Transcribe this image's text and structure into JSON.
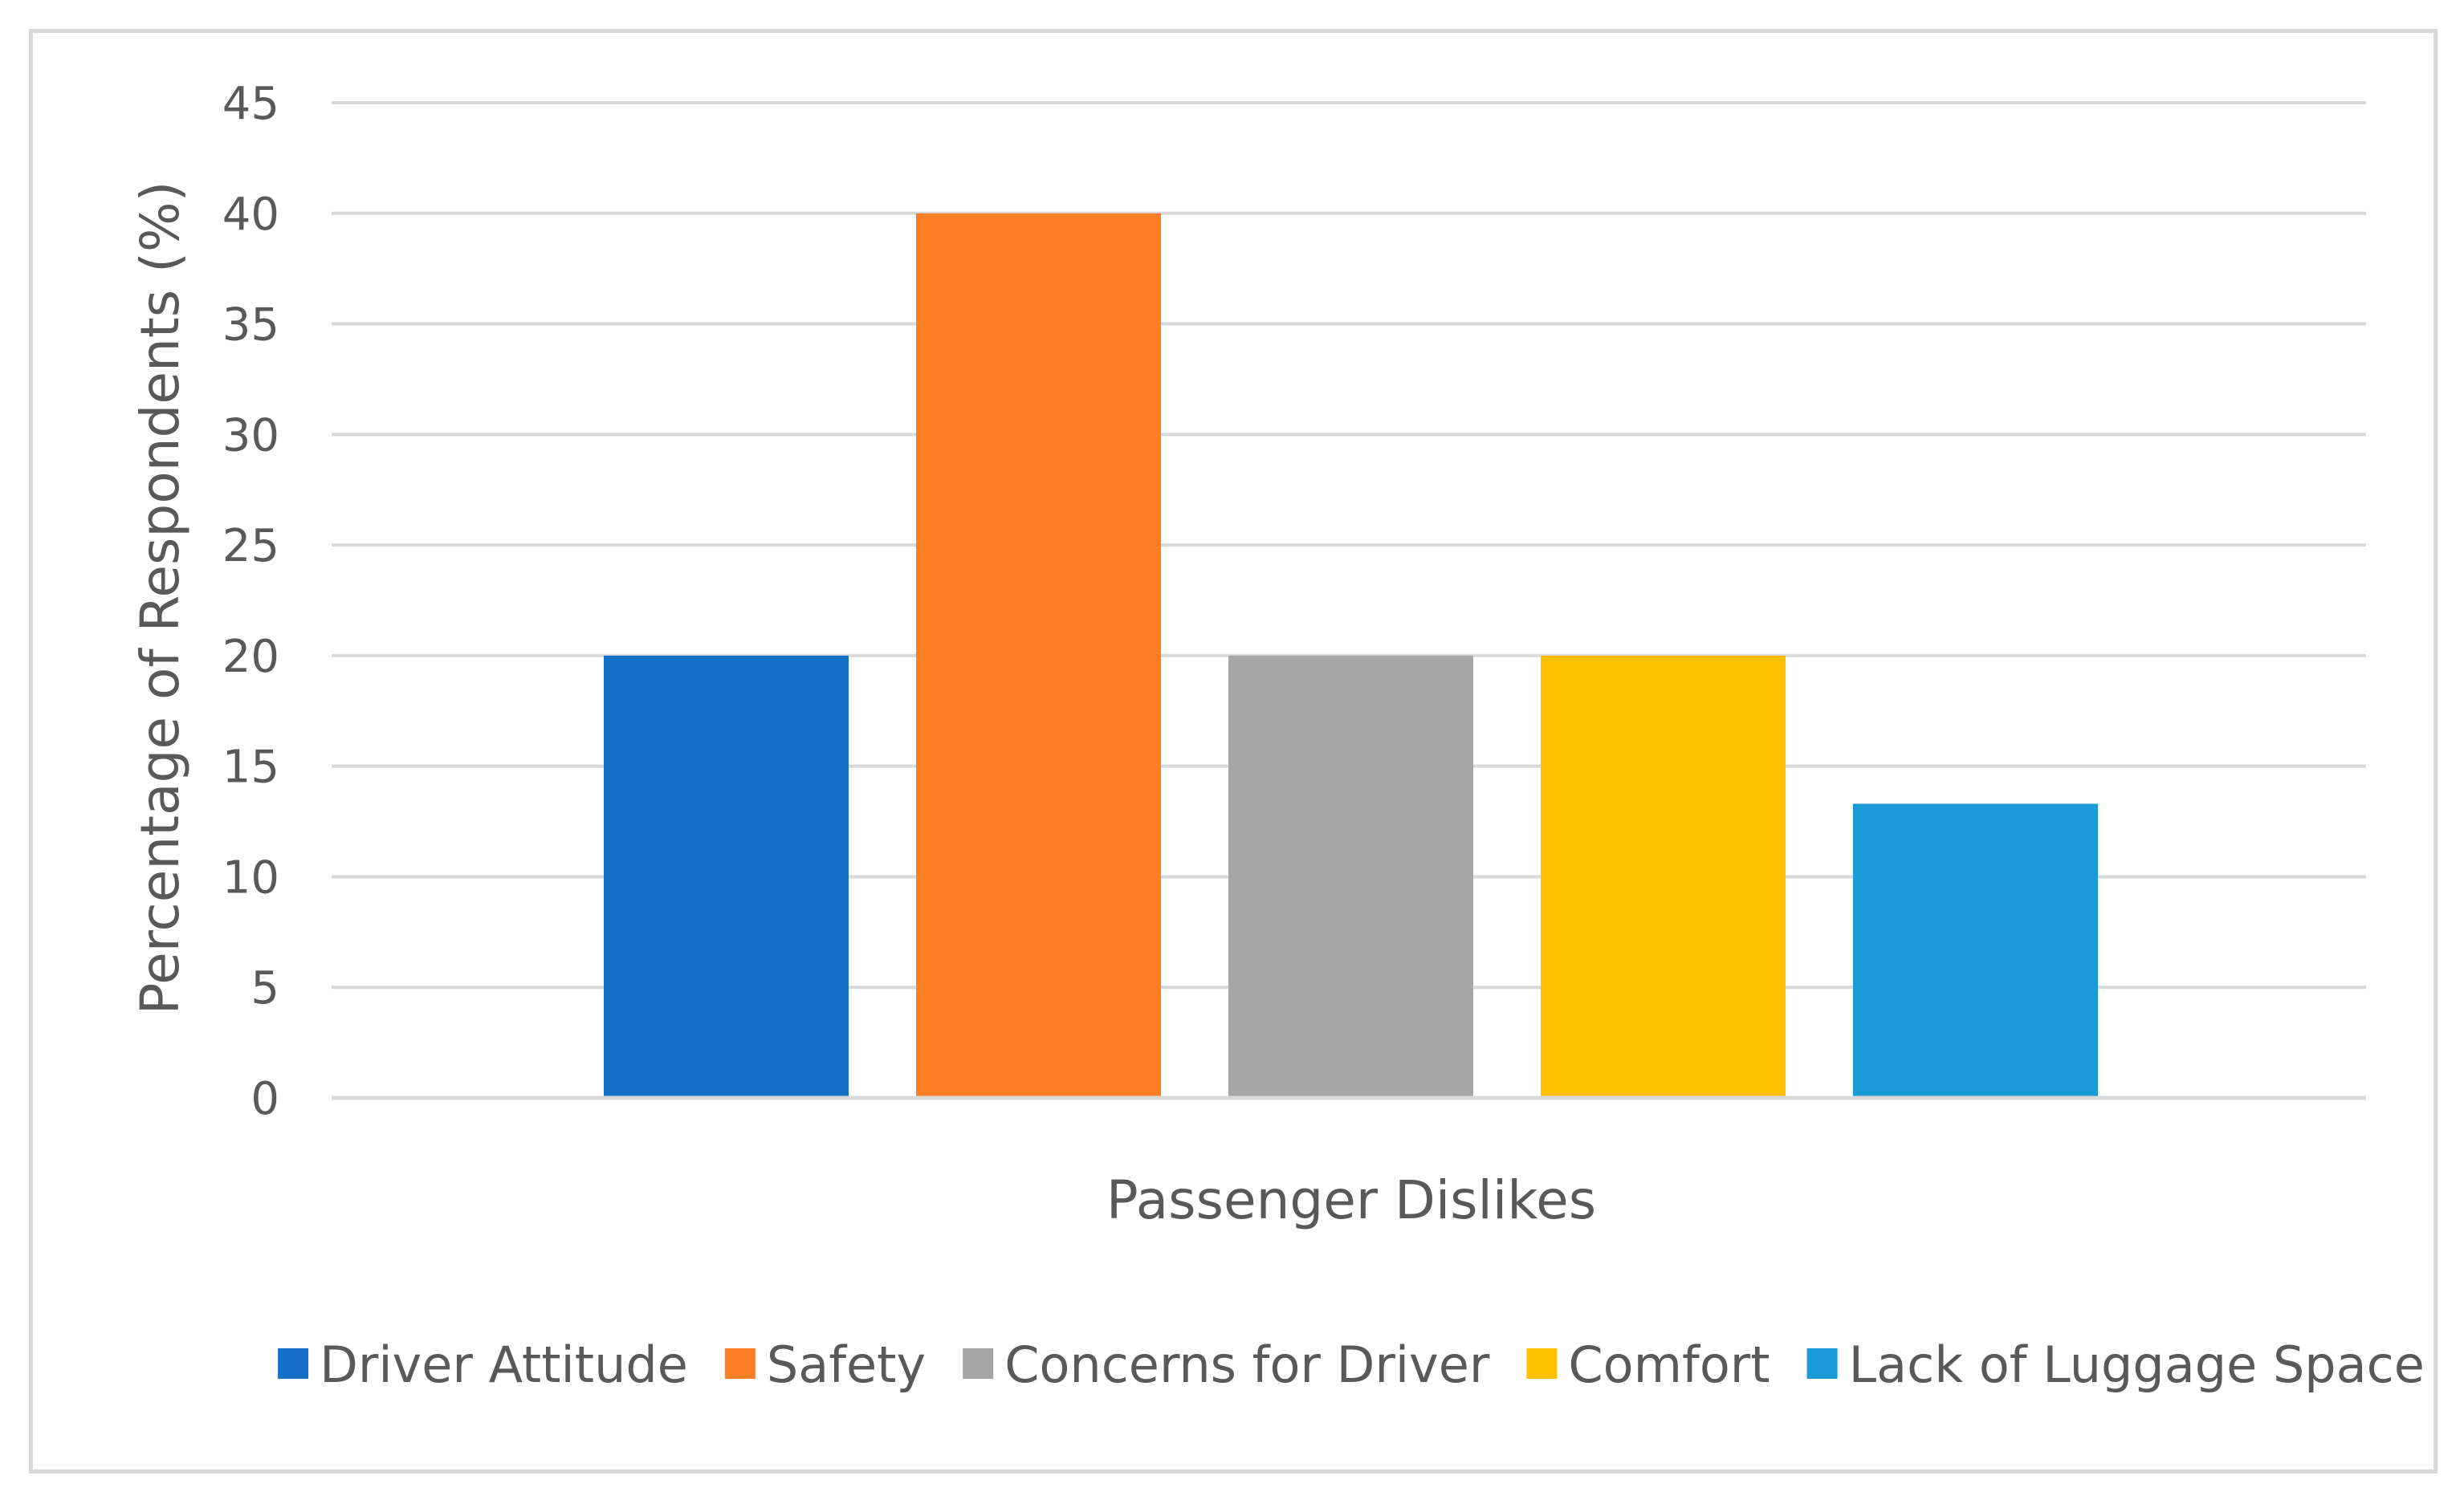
{
  "chart_data": {
    "type": "bar",
    "title": "",
    "xlabel": "Passenger Dislikes",
    "ylabel": "Percentage of Respondents (%)",
    "ylim": [
      0,
      45
    ],
    "yticks": [
      0,
      5,
      10,
      15,
      20,
      25,
      30,
      35,
      40,
      45
    ],
    "grid": true,
    "legend_position": "bottom",
    "series": [
      {
        "name": "Driver Attitude",
        "value": 20,
        "color": "#1570c8"
      },
      {
        "name": "Safety",
        "value": 40,
        "color": "#fd7f25"
      },
      {
        "name": "Concerns for Driver",
        "value": 20,
        "color": "#a6a6a6"
      },
      {
        "name": "Comfort",
        "value": 20,
        "color": "#ffc000"
      },
      {
        "name": "Lack of Luggage Space",
        "value": 13.3,
        "color": "#1a9bd7"
      }
    ]
  }
}
